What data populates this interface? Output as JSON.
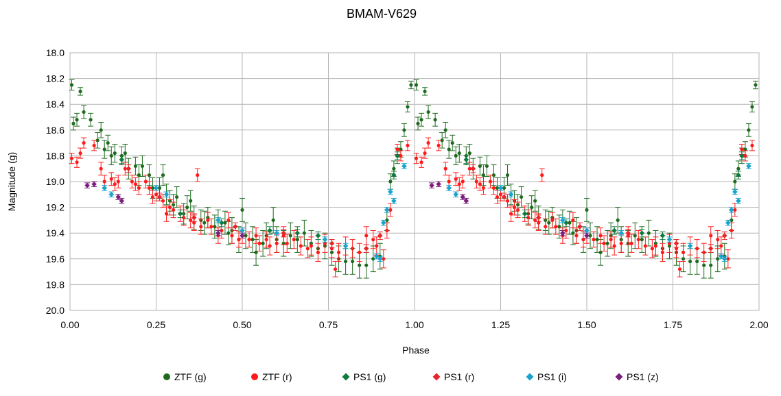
{
  "chart_data": {
    "type": "scatter",
    "title": "BMAM-V629",
    "xlabel": "Phase",
    "ylabel": "Magnitude (g)",
    "xlim": [
      0,
      2
    ],
    "ylim": [
      18.0,
      20.0
    ],
    "y_inverted": true,
    "grid": true,
    "legend_position": "bottom",
    "x_ticks": [
      "0.00",
      "0.25",
      "0.50",
      "0.75",
      "1.00",
      "1.25",
      "1.50",
      "1.75",
      "2.00"
    ],
    "x_tick_values": [
      0,
      0.25,
      0.5,
      0.75,
      1.0,
      1.25,
      1.5,
      1.75,
      2.0
    ],
    "y_ticks": [
      "18.0",
      "18.2",
      "18.4",
      "18.6",
      "18.8",
      "19.0",
      "19.2",
      "19.4",
      "19.6",
      "19.8",
      "20.0"
    ],
    "y_tick_values": [
      18.0,
      18.2,
      18.4,
      18.6,
      18.8,
      19.0,
      19.2,
      19.4,
      19.6,
      19.8,
      20.0
    ],
    "series": [
      {
        "name": "ZTF (g)",
        "color": "#1e6b1e",
        "marker": "circle",
        "points": [
          [
            0.005,
            18.25,
            0.04
          ],
          [
            0.01,
            18.55,
            0.05
          ],
          [
            0.02,
            18.52,
            0.05
          ],
          [
            0.03,
            18.3,
            0.03
          ],
          [
            0.04,
            18.46,
            0.05
          ],
          [
            0.06,
            18.52,
            0.05
          ],
          [
            0.08,
            18.68,
            0.06
          ],
          [
            0.09,
            18.6,
            0.06
          ],
          [
            0.1,
            18.75,
            0.07
          ],
          [
            0.11,
            18.7,
            0.06
          ],
          [
            0.12,
            18.8,
            0.07
          ],
          [
            0.13,
            18.78,
            0.07
          ],
          [
            0.15,
            18.8,
            0.07
          ],
          [
            0.16,
            18.78,
            0.07
          ],
          [
            0.17,
            18.9,
            0.08
          ],
          [
            0.19,
            18.88,
            0.07
          ],
          [
            0.2,
            18.95,
            0.08
          ],
          [
            0.21,
            18.88,
            0.08
          ],
          [
            0.23,
            18.95,
            0.08
          ],
          [
            0.24,
            19.05,
            0.08
          ],
          [
            0.26,
            19.05,
            0.08
          ],
          [
            0.27,
            18.95,
            0.08
          ],
          [
            0.28,
            19.1,
            0.08
          ],
          [
            0.29,
            19.15,
            0.08
          ],
          [
            0.3,
            19.18,
            0.08
          ],
          [
            0.31,
            19.12,
            0.08
          ],
          [
            0.33,
            19.25,
            0.08
          ],
          [
            0.34,
            19.2,
            0.09
          ],
          [
            0.35,
            19.15,
            0.08
          ],
          [
            0.36,
            19.28,
            0.09
          ],
          [
            0.38,
            19.3,
            0.08
          ],
          [
            0.39,
            19.32,
            0.09
          ],
          [
            0.4,
            19.28,
            0.08
          ],
          [
            0.42,
            19.35,
            0.09
          ],
          [
            0.43,
            19.3,
            0.08
          ],
          [
            0.45,
            19.32,
            0.09
          ],
          [
            0.46,
            19.4,
            0.09
          ],
          [
            0.47,
            19.38,
            0.1
          ],
          [
            0.49,
            19.45,
            0.1
          ],
          [
            0.5,
            19.22,
            0.09
          ],
          [
            0.51,
            19.42,
            0.1
          ],
          [
            0.53,
            19.45,
            0.1
          ],
          [
            0.54,
            19.55,
            0.1
          ],
          [
            0.56,
            19.48,
            0.1
          ],
          [
            0.57,
            19.42,
            0.1
          ],
          [
            0.59,
            19.3,
            0.1
          ],
          [
            0.6,
            19.45,
            0.1
          ],
          [
            0.62,
            19.48,
            0.1
          ],
          [
            0.64,
            19.42,
            0.1
          ],
          [
            0.66,
            19.45,
            0.1
          ],
          [
            0.68,
            19.4,
            0.1
          ],
          [
            0.7,
            19.48,
            0.1
          ],
          [
            0.72,
            19.52,
            0.1
          ],
          [
            0.74,
            19.5,
            0.1
          ],
          [
            0.76,
            19.55,
            0.1
          ],
          [
            0.78,
            19.6,
            0.1
          ],
          [
            0.8,
            19.62,
            0.1
          ],
          [
            0.82,
            19.62,
            0.1
          ],
          [
            0.84,
            19.65,
            0.1
          ],
          [
            0.86,
            19.65,
            0.1
          ],
          [
            0.88,
            19.6,
            0.1
          ],
          [
            0.9,
            19.58,
            0.1
          ],
          [
            0.92,
            19.3,
            0.08
          ],
          [
            0.93,
            19.0,
            0.06
          ],
          [
            0.94,
            18.9,
            0.06
          ],
          [
            0.95,
            18.8,
            0.06
          ],
          [
            0.96,
            18.75,
            0.06
          ],
          [
            0.97,
            18.6,
            0.05
          ],
          [
            0.98,
            18.42,
            0.04
          ],
          [
            0.99,
            18.25,
            0.03
          ]
        ]
      },
      {
        "name": "ZTF (r)",
        "color": "#ff1a1a",
        "marker": "circle",
        "points": [
          [
            0.005,
            18.82,
            0.04
          ],
          [
            0.02,
            18.85,
            0.04
          ],
          [
            0.03,
            18.78,
            0.04
          ],
          [
            0.04,
            18.7,
            0.04
          ],
          [
            0.07,
            18.72,
            0.04
          ],
          [
            0.09,
            18.9,
            0.05
          ],
          [
            0.1,
            19.0,
            0.05
          ],
          [
            0.12,
            18.98,
            0.05
          ],
          [
            0.13,
            19.02,
            0.05
          ],
          [
            0.14,
            19.0,
            0.05
          ],
          [
            0.16,
            18.9,
            0.05
          ],
          [
            0.18,
            19.0,
            0.05
          ],
          [
            0.19,
            19.02,
            0.05
          ],
          [
            0.2,
            19.05,
            0.05
          ],
          [
            0.22,
            19.0,
            0.05
          ],
          [
            0.23,
            19.05,
            0.05
          ],
          [
            0.24,
            19.12,
            0.05
          ],
          [
            0.25,
            19.1,
            0.05
          ],
          [
            0.27,
            19.15,
            0.05
          ],
          [
            0.28,
            19.25,
            0.06
          ],
          [
            0.29,
            19.2,
            0.06
          ],
          [
            0.3,
            19.22,
            0.06
          ],
          [
            0.32,
            19.25,
            0.06
          ],
          [
            0.33,
            19.28,
            0.06
          ],
          [
            0.35,
            19.3,
            0.06
          ],
          [
            0.36,
            19.32,
            0.06
          ],
          [
            0.37,
            18.95,
            0.05
          ],
          [
            0.38,
            19.35,
            0.06
          ],
          [
            0.4,
            19.3,
            0.06
          ],
          [
            0.41,
            19.35,
            0.06
          ],
          [
            0.43,
            19.42,
            0.06
          ],
          [
            0.44,
            19.38,
            0.06
          ],
          [
            0.46,
            19.3,
            0.06
          ],
          [
            0.47,
            19.42,
            0.06
          ],
          [
            0.49,
            19.45,
            0.06
          ],
          [
            0.5,
            19.42,
            0.06
          ],
          [
            0.52,
            19.45,
            0.06
          ],
          [
            0.54,
            19.42,
            0.06
          ],
          [
            0.55,
            19.48,
            0.06
          ],
          [
            0.57,
            19.45,
            0.06
          ],
          [
            0.58,
            19.5,
            0.07
          ],
          [
            0.6,
            19.48,
            0.07
          ],
          [
            0.62,
            19.42,
            0.07
          ],
          [
            0.63,
            19.48,
            0.07
          ],
          [
            0.65,
            19.45,
            0.07
          ],
          [
            0.67,
            19.5,
            0.07
          ],
          [
            0.69,
            19.52,
            0.07
          ],
          [
            0.7,
            19.5,
            0.07
          ],
          [
            0.72,
            19.55,
            0.07
          ],
          [
            0.74,
            19.48,
            0.07
          ],
          [
            0.76,
            19.52,
            0.07
          ],
          [
            0.77,
            19.68,
            0.06
          ],
          [
            0.78,
            19.55,
            0.07
          ],
          [
            0.8,
            19.5,
            0.07
          ],
          [
            0.82,
            19.52,
            0.07
          ],
          [
            0.84,
            19.55,
            0.07
          ],
          [
            0.86,
            19.42,
            0.07
          ],
          [
            0.88,
            19.45,
            0.07
          ],
          [
            0.89,
            19.5,
            0.07
          ],
          [
            0.91,
            19.6,
            0.07
          ],
          [
            0.92,
            19.38,
            0.06
          ],
          [
            0.93,
            19.22,
            0.05
          ],
          [
            0.95,
            18.75,
            0.04
          ],
          [
            0.96,
            18.8,
            0.04
          ],
          [
            0.98,
            18.72,
            0.04
          ]
        ]
      },
      {
        "name": "PS1 (g)",
        "color": "#0b7b3e",
        "marker": "diamond",
        "points": [
          [
            0.15,
            18.83,
            0.03
          ],
          [
            0.32,
            19.25,
            0.03
          ],
          [
            0.44,
            19.32,
            0.03
          ],
          [
            0.58,
            19.38,
            0.03
          ],
          [
            0.66,
            19.4,
            0.03
          ],
          [
            0.72,
            19.42,
            0.03
          ],
          [
            0.94,
            18.95,
            0.03
          ],
          [
            0.95,
            18.8,
            0.03
          ]
        ]
      },
      {
        "name": "PS1 (r)",
        "color": "#e8252a",
        "marker": "diamond",
        "points": [
          [
            0.17,
            18.9,
            0.03
          ],
          [
            0.26,
            19.12,
            0.03
          ],
          [
            0.36,
            19.28,
            0.03
          ],
          [
            0.48,
            19.35,
            0.03
          ],
          [
            0.62,
            19.4,
            0.03
          ],
          [
            0.76,
            19.48,
            0.03
          ],
          [
            0.86,
            19.52,
            0.03
          ],
          [
            0.9,
            19.42,
            0.03
          ]
        ]
      },
      {
        "name": "PS1 (i)",
        "color": "#1aa3cc",
        "marker": "diamond",
        "points": [
          [
            0.1,
            19.05,
            0.02
          ],
          [
            0.12,
            19.1,
            0.02
          ],
          [
            0.25,
            19.05,
            0.02
          ],
          [
            0.28,
            19.1,
            0.02
          ],
          [
            0.43,
            19.3,
            0.02
          ],
          [
            0.5,
            19.38,
            0.02
          ],
          [
            0.6,
            19.4,
            0.02
          ],
          [
            0.74,
            19.45,
            0.02
          ],
          [
            0.8,
            19.5,
            0.02
          ],
          [
            0.89,
            19.58,
            0.02
          ],
          [
            0.9,
            19.6,
            0.02
          ],
          [
            0.91,
            19.32,
            0.02
          ],
          [
            0.92,
            19.22,
            0.02
          ],
          [
            0.93,
            19.08,
            0.02
          ],
          [
            0.94,
            19.15,
            0.02
          ],
          [
            0.97,
            18.88,
            0.02
          ]
        ]
      },
      {
        "name": "PS1 (z)",
        "color": "#7a1f7a",
        "marker": "diamond",
        "points": [
          [
            0.05,
            19.03,
            0.02
          ],
          [
            0.07,
            19.02,
            0.02
          ],
          [
            0.14,
            19.12,
            0.02
          ],
          [
            0.15,
            19.15,
            0.02
          ],
          [
            0.43,
            19.4,
            0.02
          ],
          [
            0.5,
            19.42,
            0.02
          ]
        ]
      }
    ]
  }
}
